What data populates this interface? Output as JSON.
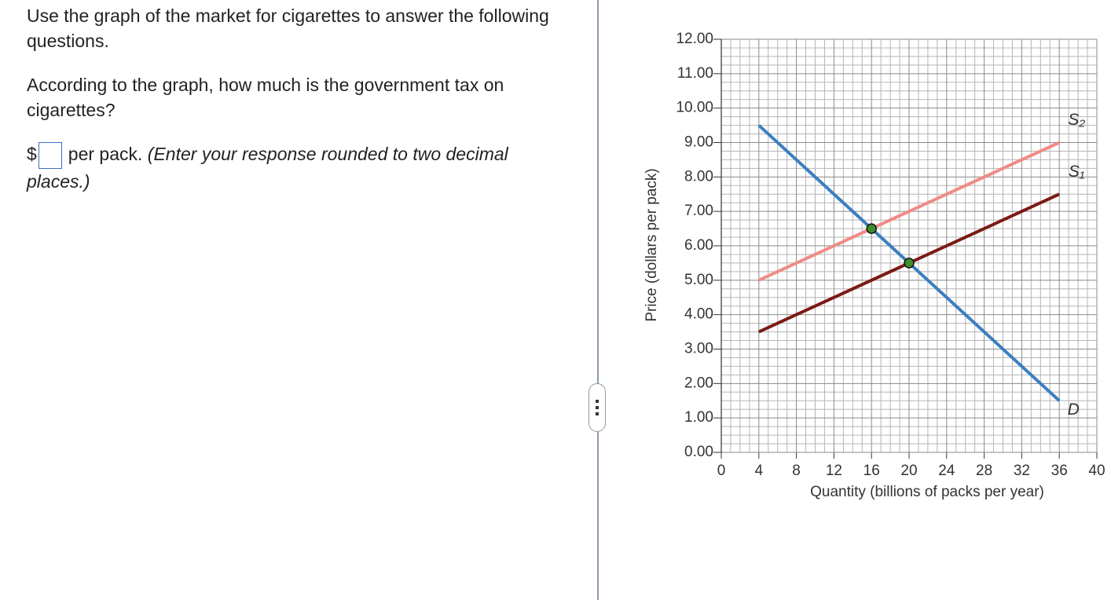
{
  "question": {
    "intro": "Use the graph of the market for cigarettes to answer the following questions.",
    "prompt": "According to the graph, how much is the government tax on cigarettes?",
    "currency": "$",
    "unit": "per pack.",
    "instruction": "(Enter your response rounded to two decimal places.)"
  },
  "chart_data": {
    "type": "line",
    "xlabel": "Quantity (billions of packs per year)",
    "ylabel": "Price (dollars per pack)",
    "xlim": [
      0,
      40
    ],
    "xticks": [
      0,
      4,
      8,
      12,
      16,
      20,
      24,
      28,
      32,
      36,
      40
    ],
    "ylim": [
      0,
      12
    ],
    "yticks": [
      {
        "value": 0,
        "label": "0.00"
      },
      {
        "value": 1,
        "label": "1.00"
      },
      {
        "value": 2,
        "label": "2.00"
      },
      {
        "value": 3,
        "label": "3.00"
      },
      {
        "value": 4,
        "label": "4.00"
      },
      {
        "value": 5,
        "label": "5.00"
      },
      {
        "value": 6,
        "label": "6.00"
      },
      {
        "value": 7,
        "label": "7.00"
      },
      {
        "value": 8,
        "label": "8.00"
      },
      {
        "value": 9,
        "label": "9.00"
      },
      {
        "value": 10,
        "label": "10.00"
      },
      {
        "value": 11,
        "label": "11.00"
      },
      {
        "value": 12,
        "label": "12.00"
      }
    ],
    "grid": true,
    "series": [
      {
        "name": "D",
        "color": "#3b7fc0",
        "x": [
          4,
          36
        ],
        "values": [
          9.5,
          1.5
        ]
      },
      {
        "name": "S₂",
        "color": "#f08b85",
        "x": [
          4,
          36
        ],
        "values": [
          5.0,
          9.0
        ]
      },
      {
        "name": "S₁",
        "color": "#7b1a14",
        "x": [
          4,
          36
        ],
        "values": [
          3.5,
          7.5
        ]
      }
    ],
    "equilibria": {
      "color": "#3e8e2c",
      "x": [
        16,
        20
      ],
      "values": [
        6.5,
        5.5
      ]
    }
  }
}
